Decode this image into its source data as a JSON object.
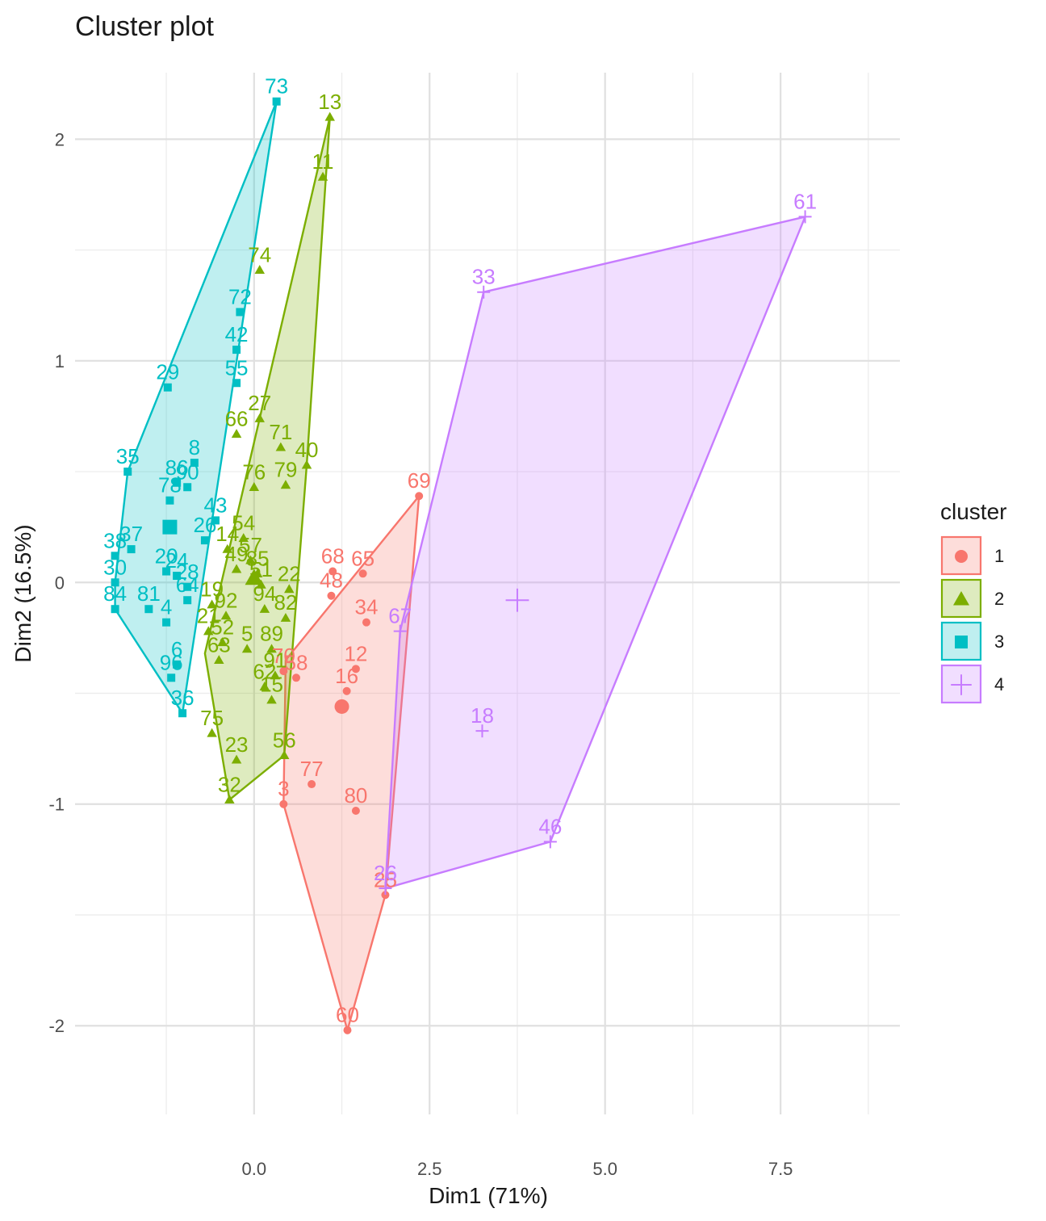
{
  "chart_data": {
    "type": "scatter",
    "title": "Cluster plot",
    "xlabel": "Dim1 (71%)",
    "ylabel": "Dim2 (16.5%)",
    "xlim": [
      -2.55,
      9.2
    ],
    "ylim": [
      -2.4,
      2.3
    ],
    "x_ticks": [
      0.0,
      2.5,
      5.0,
      7.5
    ],
    "x_tick_labels": [
      "0.0",
      "2.5",
      "5.0",
      "7.5"
    ],
    "y_ticks": [
      2,
      1,
      0,
      -1,
      -2
    ],
    "y_tick_labels": [
      "2",
      "1",
      "0",
      "-1",
      "-2"
    ],
    "grid": true,
    "legend": {
      "title": "cluster",
      "position": "right",
      "entries": [
        "1",
        "2",
        "3",
        "4"
      ]
    },
    "colors": {
      "1": "#F8766D",
      "2": "#7CAE00",
      "3": "#00BFC4",
      "4": "#C77CFF"
    },
    "series": [
      {
        "cluster": "1",
        "shape": "circle",
        "color": "#F8766D",
        "hull": [
          [
            2.35,
            0.39
          ],
          [
            1.87,
            -1.41
          ],
          [
            1.33,
            -2.02
          ],
          [
            0.42,
            -1.0
          ],
          [
            0.45,
            -0.35
          ]
        ],
        "center": [
          1.25,
          -0.56
        ],
        "points": [
          {
            "id": "69",
            "x": 2.35,
            "y": 0.39
          },
          {
            "id": "68",
            "x": 1.12,
            "y": 0.05
          },
          {
            "id": "65",
            "x": 1.55,
            "y": 0.04
          },
          {
            "id": "48",
            "x": 1.1,
            "y": -0.06
          },
          {
            "id": "34",
            "x": 1.6,
            "y": -0.18
          },
          {
            "id": "70",
            "x": 0.42,
            "y": -0.4
          },
          {
            "id": "58",
            "x": 0.6,
            "y": -0.43
          },
          {
            "id": "12",
            "x": 1.45,
            "y": -0.39
          },
          {
            "id": "16",
            "x": 1.32,
            "y": -0.49
          },
          {
            "id": "77",
            "x": 0.82,
            "y": -0.91
          },
          {
            "id": "3",
            "x": 0.42,
            "y": -1.0
          },
          {
            "id": "80",
            "x": 1.45,
            "y": -1.03
          },
          {
            "id": "25",
            "x": 1.87,
            "y": -1.41
          },
          {
            "id": "60",
            "x": 1.33,
            "y": -2.02
          }
        ]
      },
      {
        "cluster": "2",
        "shape": "triangle",
        "color": "#7CAE00",
        "hull": [
          [
            1.08,
            2.1
          ],
          [
            0.75,
            0.53
          ],
          [
            0.43,
            -0.78
          ],
          [
            -0.35,
            -0.98
          ],
          [
            -0.7,
            -0.32
          ]
        ],
        "center": [
          0.0,
          0.02
        ],
        "points": [
          {
            "id": "13",
            "x": 1.08,
            "y": 2.1
          },
          {
            "id": "11",
            "x": 0.98,
            "y": 1.83
          },
          {
            "id": "74",
            "x": 0.08,
            "y": 1.41
          },
          {
            "id": "27",
            "x": 0.08,
            "y": 0.74
          },
          {
            "id": "66",
            "x": -0.25,
            "y": 0.67
          },
          {
            "id": "71",
            "x": 0.38,
            "y": 0.61
          },
          {
            "id": "40",
            "x": 0.75,
            "y": 0.53
          },
          {
            "id": "76",
            "x": 0.0,
            "y": 0.43
          },
          {
            "id": "79",
            "x": 0.45,
            "y": 0.44
          },
          {
            "id": "54",
            "x": -0.15,
            "y": 0.2
          },
          {
            "id": "14",
            "x": -0.38,
            "y": 0.15
          },
          {
            "id": "57",
            "x": -0.05,
            "y": 0.1
          },
          {
            "id": "49",
            "x": -0.25,
            "y": 0.06
          },
          {
            "id": "85",
            "x": 0.05,
            "y": 0.04
          },
          {
            "id": "22",
            "x": 0.5,
            "y": -0.03
          },
          {
            "id": "51",
            "x": 0.1,
            "y": -0.01
          },
          {
            "id": "19",
            "x": -0.6,
            "y": -0.1
          },
          {
            "id": "92",
            "x": -0.4,
            "y": -0.15
          },
          {
            "id": "94",
            "x": 0.15,
            "y": -0.12
          },
          {
            "id": "82",
            "x": 0.45,
            "y": -0.16
          },
          {
            "id": "21",
            "x": -0.65,
            "y": -0.22
          },
          {
            "id": "52",
            "x": -0.45,
            "y": -0.27
          },
          {
            "id": "5",
            "x": -0.1,
            "y": -0.3
          },
          {
            "id": "89",
            "x": 0.25,
            "y": -0.3
          },
          {
            "id": "63",
            "x": -0.5,
            "y": -0.35
          },
          {
            "id": "91",
            "x": 0.3,
            "y": -0.42
          },
          {
            "id": "62",
            "x": 0.15,
            "y": -0.47
          },
          {
            "id": "15",
            "x": 0.25,
            "y": -0.53
          },
          {
            "id": "75",
            "x": -0.6,
            "y": -0.68
          },
          {
            "id": "56",
            "x": 0.43,
            "y": -0.78
          },
          {
            "id": "23",
            "x": -0.25,
            "y": -0.8
          },
          {
            "id": "32",
            "x": -0.35,
            "y": -0.98
          }
        ]
      },
      {
        "cluster": "3",
        "shape": "square",
        "color": "#00BFC4",
        "hull": [
          [
            0.32,
            2.17
          ],
          [
            -1.02,
            -0.59
          ],
          [
            -1.98,
            -0.12
          ],
          [
            -1.98,
            0.0
          ],
          [
            -1.8,
            0.5
          ]
        ],
        "center": [
          -1.2,
          0.25
        ],
        "points": [
          {
            "id": "73",
            "x": 0.32,
            "y": 2.17
          },
          {
            "id": "72",
            "x": -0.2,
            "y": 1.22
          },
          {
            "id": "42",
            "x": -0.25,
            "y": 1.05
          },
          {
            "id": "55",
            "x": -0.25,
            "y": 0.9
          },
          {
            "id": "29",
            "x": -1.23,
            "y": 0.88
          },
          {
            "id": "35",
            "x": -1.8,
            "y": 0.5
          },
          {
            "id": "8",
            "x": -0.85,
            "y": 0.54
          },
          {
            "id": "86",
            "x": -1.1,
            "y": 0.45
          },
          {
            "id": "90",
            "x": -0.95,
            "y": 0.43
          },
          {
            "id": "78",
            "x": -1.2,
            "y": 0.37
          },
          {
            "id": "43",
            "x": -0.55,
            "y": 0.28
          },
          {
            "id": "26",
            "x": -0.7,
            "y": 0.19
          },
          {
            "id": "37",
            "x": -1.75,
            "y": 0.15
          },
          {
            "id": "38",
            "x": -1.98,
            "y": 0.12
          },
          {
            "id": "20",
            "x": -1.25,
            "y": 0.05
          },
          {
            "id": "24",
            "x": -1.1,
            "y": 0.03
          },
          {
            "id": "28",
            "x": -0.95,
            "y": -0.02
          },
          {
            "id": "30",
            "x": -1.98,
            "y": 0.0
          },
          {
            "id": "84",
            "x": -1.98,
            "y": -0.12
          },
          {
            "id": "81",
            "x": -1.5,
            "y": -0.12
          },
          {
            "id": "64",
            "x": -0.95,
            "y": -0.08
          },
          {
            "id": "4",
            "x": -1.25,
            "y": -0.18
          },
          {
            "id": "6",
            "x": -1.1,
            "y": -0.37
          },
          {
            "id": "96",
            "x": -1.18,
            "y": -0.43
          },
          {
            "id": "36",
            "x": -1.02,
            "y": -0.59
          }
        ]
      },
      {
        "cluster": "4",
        "shape": "cross",
        "color": "#C77CFF",
        "hull": [
          [
            7.85,
            1.65
          ],
          [
            4.22,
            -1.17
          ],
          [
            1.87,
            -1.38
          ],
          [
            2.08,
            -0.22
          ],
          [
            3.27,
            1.31
          ]
        ],
        "center": [
          3.75,
          -0.08
        ],
        "points": [
          {
            "id": "61",
            "x": 7.85,
            "y": 1.65
          },
          {
            "id": "33",
            "x": 3.27,
            "y": 1.31
          },
          {
            "id": "67",
            "x": 2.08,
            "y": -0.22
          },
          {
            "id": "18",
            "x": 3.25,
            "y": -0.67
          },
          {
            "id": "46",
            "x": 4.22,
            "y": -1.17
          },
          {
            "id": "26",
            "x": 1.87,
            "y": -1.38
          }
        ]
      }
    ]
  }
}
